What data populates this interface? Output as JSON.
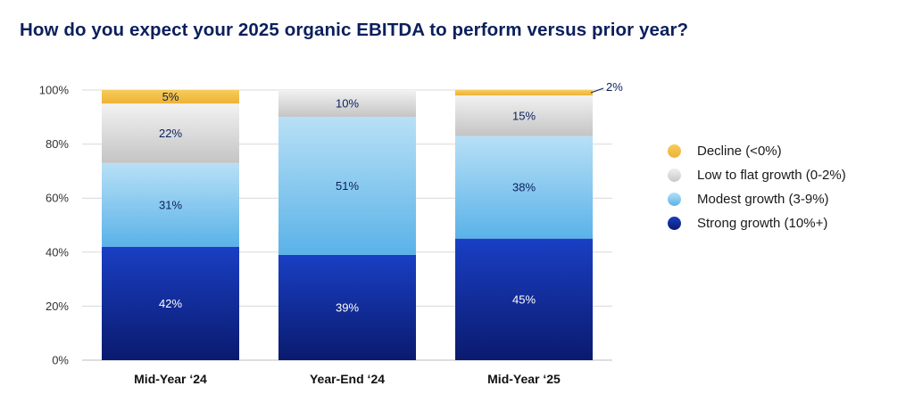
{
  "title": "How do you expect your 2025 organic EBITDA to perform versus prior year?",
  "chart_data": {
    "type": "bar",
    "stacked": true,
    "categories": [
      "Mid-Year ‘24",
      "Year-End ‘24",
      "Mid-Year ‘25"
    ],
    "ylim": [
      0,
      100
    ],
    "yticks": [
      "0%",
      "20%",
      "40%",
      "60%",
      "80%",
      "100%"
    ],
    "grid": true,
    "legend_position": "right",
    "series": [
      {
        "name": "Strong growth (10%+)",
        "values": [
          42,
          39,
          45
        ],
        "labels": [
          "42%",
          "39%",
          "45%"
        ],
        "color": "#1535b0",
        "label_color": "#ffffff"
      },
      {
        "name": "Modest growth (3-9%)",
        "values": [
          31,
          51,
          38
        ],
        "labels": [
          "31%",
          "51%",
          "38%"
        ],
        "color": "#8fd0f2",
        "label_color": "#0b1f5c"
      },
      {
        "name": "Low to flat growth (0-2%)",
        "values": [
          22,
          10,
          15
        ],
        "labels": [
          "22%",
          "10%",
          "15%"
        ],
        "color": "#dcdcdc",
        "label_color": "#0b1f5c"
      },
      {
        "name": "Decline (<0%)",
        "values": [
          5,
          0,
          2
        ],
        "labels": [
          "5%",
          "",
          "2%"
        ],
        "color": "#f2bd45",
        "label_color": "#0b1f5c"
      }
    ],
    "legend_order": [
      "Decline (<0%)",
      "Low to flat growth (0-2%)",
      "Modest growth (3-9%)",
      "Strong growth (10%+)"
    ]
  }
}
